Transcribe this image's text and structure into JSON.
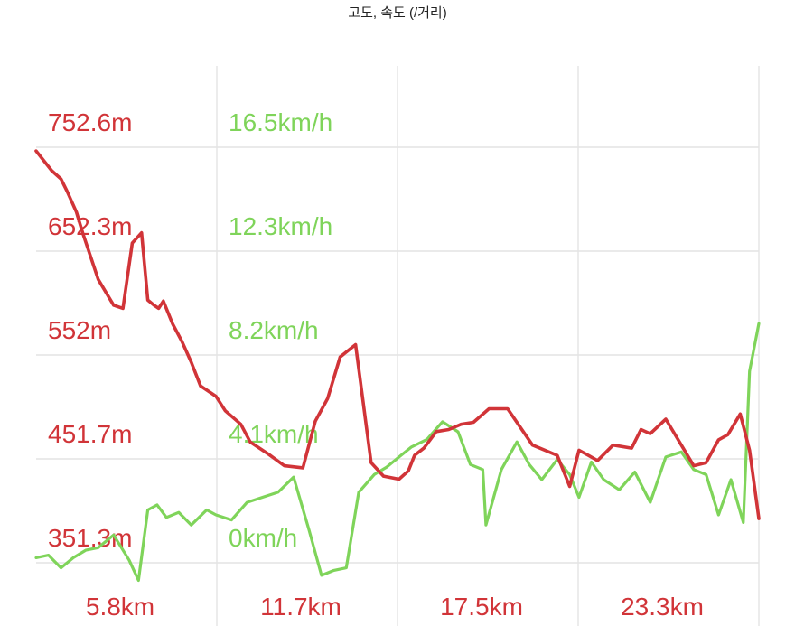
{
  "chart_data": {
    "type": "line",
    "title": "고도, 속도 (/거리)",
    "x_tick_labels": [
      "5.8km",
      "11.7km",
      "17.5km",
      "23.3km"
    ],
    "x_ticks_km": [
      5.8,
      11.7,
      17.5,
      23.3
    ],
    "xlim_km": [
      0,
      23.3
    ],
    "grid": true,
    "legend": "none",
    "axes": {
      "elevation": {
        "tick_labels": [
          "752.6m",
          "652.3m",
          "552m",
          "451.7m",
          "351.3m"
        ],
        "ticks": [
          752.6,
          652.3,
          552.0,
          451.7,
          351.3
        ],
        "ylim": [
          351.3,
          752.6
        ],
        "color": "#d13438"
      },
      "speed": {
        "tick_labels": [
          "16.5km/h",
          "12.3km/h",
          "8.2km/h",
          "4.1km/h",
          "0km/h"
        ],
        "ticks": [
          16.5,
          12.3,
          8.2,
          4.1,
          0
        ],
        "ylim": [
          0,
          16.5
        ],
        "color": "#7fd45a"
      }
    },
    "series": [
      {
        "axis": "elevation",
        "color": "#d13438",
        "x": [
          0,
          0.5,
          0.8,
          1.0,
          1.3,
          1.5,
          2.0,
          2.5,
          2.8,
          3.1,
          3.4,
          3.6,
          3.8,
          3.95,
          4.1,
          4.4,
          4.7,
          5.0,
          5.3,
          5.8,
          6.1,
          6.6,
          6.9,
          7.2,
          7.5,
          8.0,
          8.6,
          9.0,
          9.4,
          9.8,
          10.3,
          10.8,
          11.2,
          11.7,
          12.0,
          12.2,
          12.5,
          12.7,
          12.9,
          13.3,
          13.7,
          14.1,
          14.6,
          15.2,
          16.0,
          16.8,
          17.2,
          17.5,
          17.8,
          18.1,
          18.6,
          19.2,
          19.5,
          19.8,
          20.3,
          20.8,
          21.2,
          21.6,
          22.0,
          22.3,
          22.7,
          23.0,
          23.3
        ],
        "values": [
          749,
          730,
          722,
          710,
          690,
          670,
          625,
          600,
          597,
          660,
          670,
          605,
          600,
          597,
          604,
          582,
          565,
          545,
          522,
          512,
          498,
          485,
          468,
          462,
          456,
          445,
          443,
          488,
          510,
          550,
          562,
          448,
          435,
          432,
          440,
          455,
          462,
          470,
          478,
          480,
          485,
          487,
          500,
          500,
          465,
          455,
          425,
          460,
          455,
          450,
          465,
          462,
          480,
          476,
          490,
          465,
          445,
          448,
          470,
          475,
          495,
          460,
          394
        ]
      },
      {
        "axis": "speed",
        "color": "#7fd45a",
        "x": [
          0,
          0.4,
          0.8,
          1.2,
          1.6,
          2.0,
          2.5,
          3.0,
          3.3,
          3.6,
          3.9,
          4.2,
          4.6,
          5.0,
          5.5,
          5.8,
          6.3,
          6.8,
          7.3,
          7.8,
          8.3,
          8.8,
          9.2,
          9.6,
          10.0,
          10.4,
          10.9,
          11.3,
          11.7,
          12.1,
          12.6,
          13.1,
          13.6,
          14.0,
          14.4,
          14.5,
          15.0,
          15.5,
          15.9,
          16.3,
          16.8,
          17.2,
          17.5,
          17.9,
          18.3,
          18.8,
          19.3,
          19.8,
          20.3,
          20.8,
          21.2,
          21.6,
          22.0,
          22.4,
          22.8,
          23.0,
          23.3
        ],
        "values": [
          0.2,
          0.3,
          -0.2,
          0.2,
          0.5,
          0.6,
          1.1,
          0.1,
          -0.7,
          2.1,
          2.3,
          1.8,
          2.0,
          1.5,
          2.1,
          1.9,
          1.7,
          2.4,
          2.6,
          2.8,
          3.4,
          1.3,
          -0.5,
          -0.3,
          -0.2,
          2.8,
          3.5,
          3.8,
          4.2,
          4.6,
          4.9,
          5.6,
          5.2,
          3.9,
          3.7,
          1.5,
          3.7,
          4.8,
          3.9,
          3.3,
          4.1,
          3.5,
          2.6,
          4.0,
          3.3,
          2.9,
          3.6,
          2.4,
          4.2,
          4.4,
          3.7,
          3.5,
          1.9,
          3.3,
          1.6,
          7.6,
          9.5
        ]
      }
    ]
  }
}
